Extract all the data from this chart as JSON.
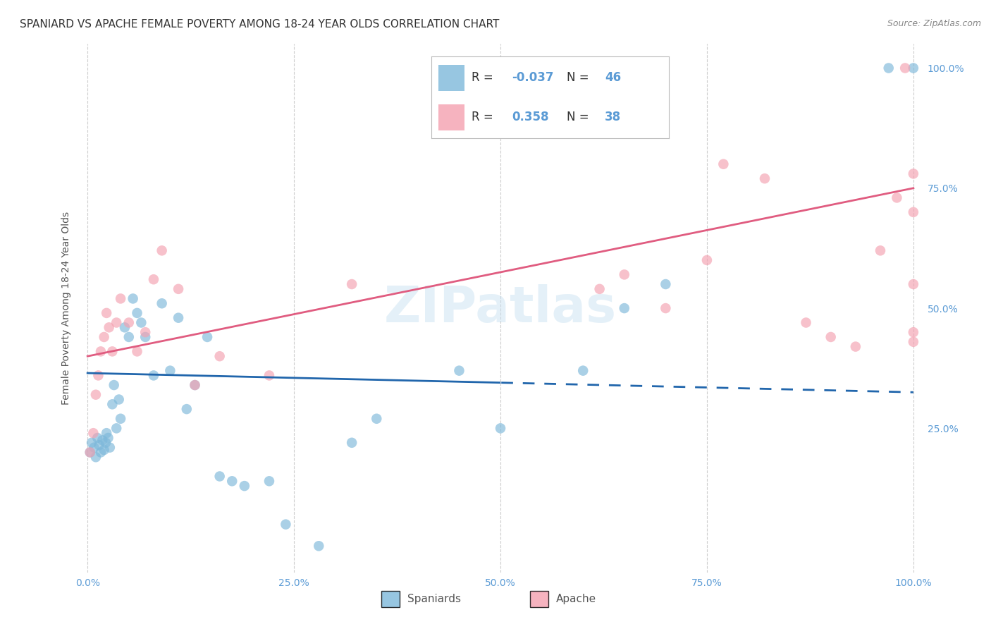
{
  "title": "SPANIARD VS APACHE FEMALE POVERTY AMONG 18-24 YEAR OLDS CORRELATION CHART",
  "source": "Source: ZipAtlas.com",
  "ylabel": "Female Poverty Among 18-24 Year Olds",
  "watermark_text": "ZIPatlas",
  "spaniards_label": "Spaniards",
  "apache_label": "Apache",
  "legend_R_sp": "-0.037",
  "legend_N_sp": "46",
  "legend_R_ap": "0.358",
  "legend_N_ap": "38",
  "spaniards_color": "#7db8da",
  "apache_color": "#f4a0b0",
  "sp_line_color": "#2166ac",
  "ap_line_color": "#e05c80",
  "tick_color": "#5b9bd5",
  "grid_color": "#c8c8c8",
  "background_color": "#ffffff",
  "sp_x": [
    0.3,
    0.5,
    0.8,
    1.0,
    1.2,
    1.4,
    1.6,
    1.8,
    2.0,
    2.2,
    2.3,
    2.5,
    2.7,
    3.0,
    3.2,
    3.5,
    3.8,
    4.0,
    4.5,
    5.0,
    5.5,
    6.0,
    6.5,
    7.0,
    8.0,
    9.0,
    10.0,
    11.0,
    12.0,
    13.0,
    14.5,
    16.0,
    17.5,
    19.0,
    22.0,
    24.0,
    28.0,
    32.0,
    35.0,
    45.0,
    50.0,
    60.0,
    65.0,
    70.0,
    97.0,
    100.0
  ],
  "sp_y": [
    20.0,
    22.0,
    21.0,
    19.0,
    23.0,
    21.5,
    20.0,
    22.5,
    20.5,
    22.0,
    24.0,
    23.0,
    21.0,
    30.0,
    34.0,
    25.0,
    31.0,
    27.0,
    46.0,
    44.0,
    52.0,
    49.0,
    47.0,
    44.0,
    36.0,
    51.0,
    37.0,
    48.0,
    29.0,
    34.0,
    44.0,
    15.0,
    14.0,
    13.0,
    14.0,
    5.0,
    0.5,
    22.0,
    27.0,
    37.0,
    25.0,
    37.0,
    50.0,
    55.0,
    100.0,
    100.0
  ],
  "ap_x": [
    0.3,
    0.7,
    1.0,
    1.3,
    1.6,
    2.0,
    2.3,
    2.6,
    3.0,
    3.5,
    4.0,
    5.0,
    6.0,
    7.0,
    8.0,
    9.0,
    11.0,
    13.0,
    16.0,
    22.0,
    32.0,
    62.0,
    65.0,
    70.0,
    75.0,
    77.0,
    82.0,
    87.0,
    90.0,
    93.0,
    96.0,
    98.0,
    99.0,
    100.0,
    100.0,
    100.0,
    100.0,
    100.0
  ],
  "ap_y": [
    20.0,
    24.0,
    32.0,
    36.0,
    41.0,
    44.0,
    49.0,
    46.0,
    41.0,
    47.0,
    52.0,
    47.0,
    41.0,
    45.0,
    56.0,
    62.0,
    54.0,
    34.0,
    40.0,
    36.0,
    55.0,
    54.0,
    57.0,
    50.0,
    60.0,
    80.0,
    77.0,
    47.0,
    44.0,
    42.0,
    62.0,
    73.0,
    100.0,
    78.0,
    70.0,
    55.0,
    45.0,
    43.0
  ],
  "xlim": [
    -1,
    101
  ],
  "ylim": [
    -5,
    105
  ],
  "xticks": [
    0,
    25,
    50,
    75,
    100
  ],
  "yticks_right": [
    25,
    50,
    75,
    100
  ],
  "xticklabels": [
    "0.0%",
    "25.0%",
    "50.0%",
    "75.0%",
    "100.0%"
  ],
  "yticklabels_right": [
    "25.0%",
    "50.0%",
    "75.0%",
    "100.0%"
  ],
  "title_fontsize": 11,
  "label_fontsize": 10,
  "tick_fontsize": 10,
  "legend_fontsize": 12,
  "scatter_size": 110,
  "scatter_alpha": 0.65,
  "line_width": 2.0,
  "sp_line_intercept": 36.5,
  "sp_line_slope": -0.04,
  "ap_line_intercept": 40.0,
  "ap_line_slope": 0.35,
  "sp_solid_end": 50.0,
  "watermark_fontsize": 52,
  "watermark_color": "#c5dff0",
  "watermark_alpha": 0.45
}
